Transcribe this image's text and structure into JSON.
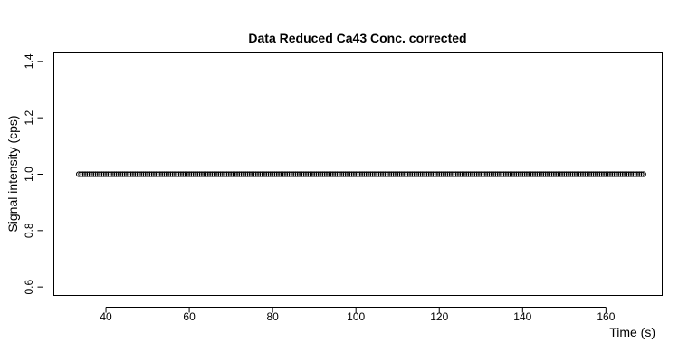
{
  "chart_data": {
    "type": "scatter",
    "title": "Data Reduced Ca43 Conc. corrected",
    "xlabel": "Time (s)",
    "ylabel": "Signal intensity (cps)",
    "xlim": [
      27.5,
      173.5
    ],
    "ylim": [
      0.57,
      1.43
    ],
    "xticks": [
      40,
      60,
      80,
      100,
      120,
      140,
      160
    ],
    "yticks": [
      0.6,
      0.8,
      1.0,
      1.2,
      1.4
    ],
    "ytick_labels": [
      "0.6",
      "0.8",
      "1.0",
      "1.2",
      "1.4"
    ],
    "series": [
      {
        "x_start": 33.5,
        "x_end": 169.0,
        "x_step": 0.5,
        "y_constant": 1.0,
        "marker": "open-circle"
      }
    ],
    "grid": false,
    "legend": "none"
  }
}
